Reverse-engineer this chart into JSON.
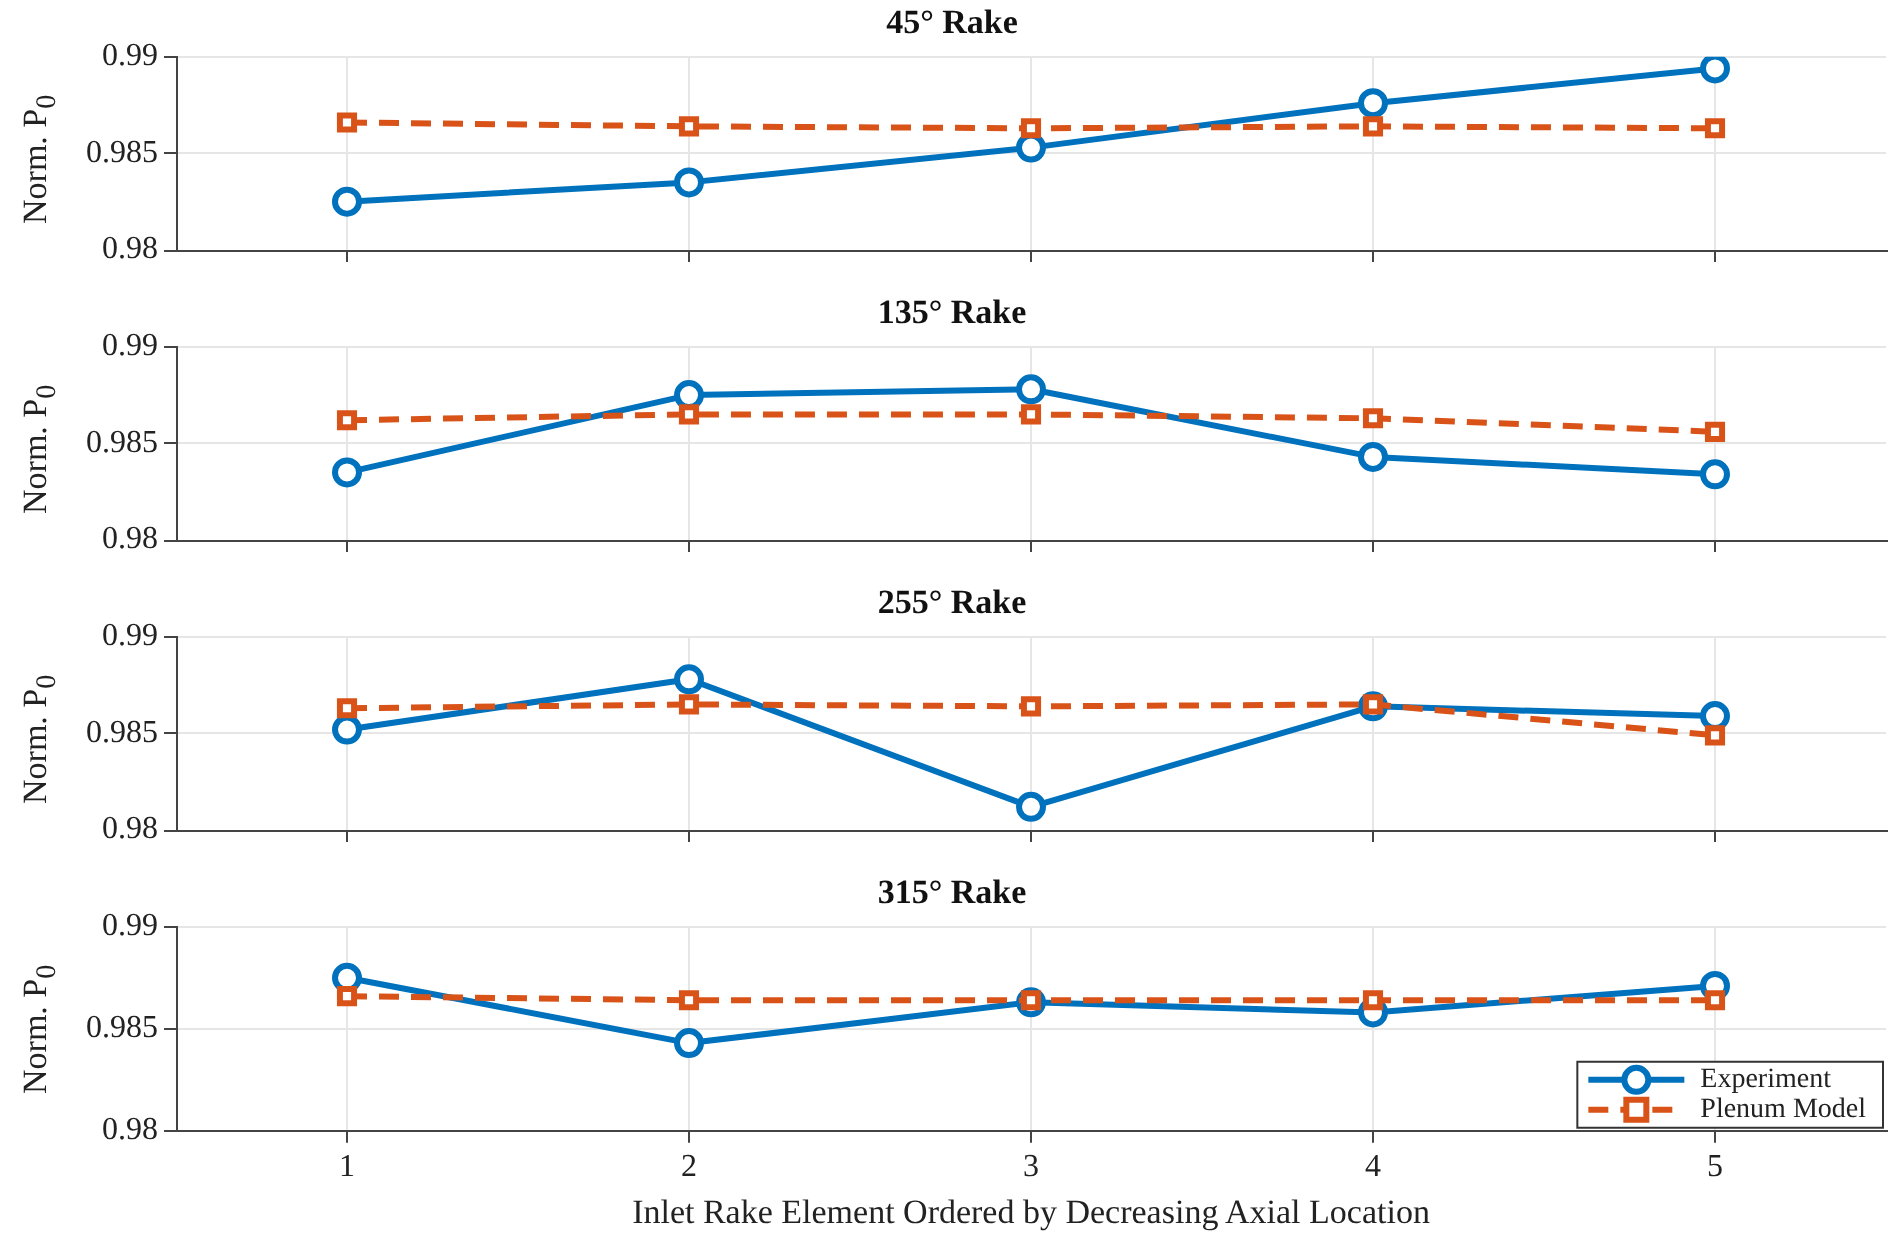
{
  "chart_data": [
    {
      "type": "line",
      "title": "45° Rake",
      "ylabel": "Norm. P$_{0}$",
      "x": [
        1,
        2,
        3,
        4,
        5
      ],
      "xlim": [
        0.5,
        5.5
      ],
      "xticks": [
        1,
        2,
        3,
        4,
        5
      ],
      "ylim": [
        0.98,
        0.99
      ],
      "yticks": [
        0.98,
        0.985,
        0.99
      ],
      "grid": true,
      "legend": false,
      "tick_labels": "y",
      "series": [
        {
          "color": "#0072bd",
          "marker": "circle",
          "line_style": "solid",
          "values": [
            0.9825,
            0.9835,
            0.9853,
            0.9876,
            0.9894
          ]
        },
        {
          "color": "#d95319",
          "marker": "square",
          "line_style": "dashed",
          "values": [
            0.9866,
            0.9864,
            0.9863,
            0.9864,
            0.9863
          ]
        }
      ]
    },
    {
      "type": "line",
      "title": "135° Rake",
      "ylabel": "Norm. P$_{0}$",
      "x": [
        1,
        2,
        3,
        4,
        5
      ],
      "xlim": [
        0.5,
        5.5
      ],
      "xticks": [
        1,
        2,
        3,
        4,
        5
      ],
      "ylim": [
        0.98,
        0.99
      ],
      "yticks": [
        0.98,
        0.985,
        0.99
      ],
      "grid": true,
      "legend": false,
      "tick_labels": "y",
      "series": [
        {
          "color": "#0072bd",
          "marker": "circle",
          "line_style": "solid",
          "values": [
            0.9835,
            0.9875,
            0.9878,
            0.9843,
            0.9834
          ]
        },
        {
          "color": "#d95319",
          "marker": "square",
          "line_style": "dashed",
          "values": [
            0.9862,
            0.9865,
            0.9865,
            0.9863,
            0.9856
          ]
        }
      ]
    },
    {
      "type": "line",
      "title": "255° Rake",
      "ylabel": "Norm. P$_{0}$",
      "x": [
        1,
        2,
        3,
        4,
        5
      ],
      "xlim": [
        0.5,
        5.5
      ],
      "xticks": [
        1,
        2,
        3,
        4,
        5
      ],
      "ylim": [
        0.98,
        0.99
      ],
      "yticks": [
        0.98,
        0.985,
        0.99
      ],
      "grid": true,
      "legend": false,
      "tick_labels": "y",
      "series": [
        {
          "color": "#0072bd",
          "marker": "circle",
          "line_style": "solid",
          "values": [
            0.9852,
            0.9878,
            0.9812,
            0.9864,
            0.9859
          ]
        },
        {
          "color": "#d95319",
          "marker": "square",
          "line_style": "dashed",
          "values": [
            0.9863,
            0.9865,
            0.9864,
            0.9865,
            0.9849
          ]
        }
      ]
    },
    {
      "type": "line",
      "title": "315° Rake",
      "ylabel": "Norm. P$_{0}$",
      "xlabel": "Inlet Rake Element Ordered by Decreasing Axial Location",
      "x": [
        1,
        2,
        3,
        4,
        5
      ],
      "xlim": [
        0.5,
        5.5
      ],
      "xticks": [
        1,
        2,
        3,
        4,
        5
      ],
      "ylim": [
        0.98,
        0.99
      ],
      "yticks": [
        0.98,
        0.985,
        0.99
      ],
      "grid": true,
      "legend": "bottom right",
      "series": [
        {
          "name": "Experiment",
          "color": "#0072bd",
          "marker": "circle",
          "line_style": "solid",
          "values": [
            0.9875,
            0.9843,
            0.9863,
            0.9858,
            0.9871
          ]
        },
        {
          "name": "Plenum Model",
          "color": "#d95319",
          "marker": "square",
          "line_style": "dashed",
          "values": [
            0.9866,
            0.9864,
            0.9864,
            0.9864,
            0.9864
          ]
        }
      ]
    }
  ]
}
